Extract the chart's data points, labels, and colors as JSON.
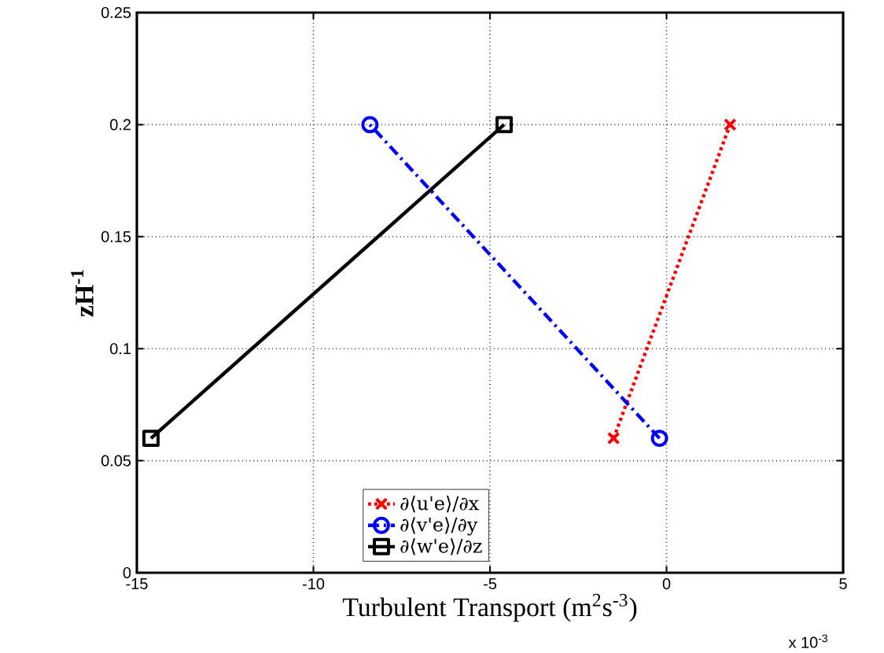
{
  "chart_data": {
    "type": "line",
    "xlabel": "Turbulent Transport (m$^{2}$s$^{-3}$)",
    "ylabel": "zH$^{-1}$",
    "annotations": [
      "x 10$^{-3}$"
    ],
    "xlim": [
      -15,
      5
    ],
    "xticks": [
      -15,
      -10,
      -5,
      0,
      5
    ],
    "ylim": [
      0,
      0.25
    ],
    "yticks": [
      0,
      0.05,
      0.1,
      0.15,
      0.2,
      0.25
    ],
    "grid": true,
    "legend": "bottom",
    "series": [
      {
        "name": "∂⟨u'e⟩/∂x",
        "color": "#ff0000",
        "x": [
          -1.5,
          1.8
        ],
        "values": [
          0.06,
          0.2
        ],
        "marker": "cross",
        "line_style": "dotted"
      },
      {
        "name": "∂⟨v'e⟩/∂y",
        "color": "#0000ff",
        "x": [
          -0.2,
          -8.4
        ],
        "values": [
          0.06,
          0.2
        ],
        "marker": "circle",
        "line_style": "dashed"
      },
      {
        "name": "∂⟨w'e⟩/∂z",
        "color": "#000000",
        "x": [
          -14.6,
          -4.6
        ],
        "values": [
          0.06,
          0.2
        ],
        "marker": "square",
        "line_style": "solid"
      }
    ]
  }
}
